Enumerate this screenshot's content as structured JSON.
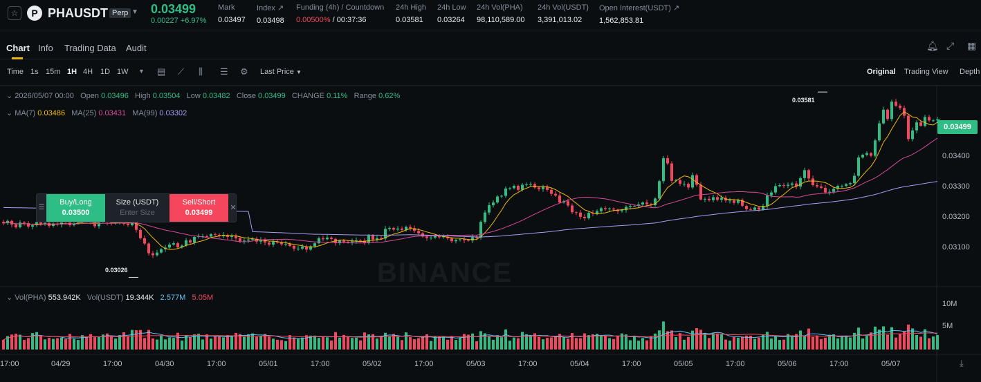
{
  "header": {
    "symbol": "PHAUSDT",
    "badge": "Perp",
    "last_price": "0.03499",
    "change": "0.00227 +6.97%",
    "stats": [
      {
        "label": "Mark",
        "value": "0.03497"
      },
      {
        "label": "Index ↗",
        "value": "0.03498"
      },
      {
        "label": "Funding (4h) / Countdown",
        "value_red": "0.00500%",
        "value": " / 00:37:36"
      },
      {
        "label": "24h High",
        "value": "0.03581"
      },
      {
        "label": "24h Low",
        "value": "0.03264"
      },
      {
        "label": "24h Vol(PHA)",
        "value": "98,110,589.00"
      },
      {
        "label": "24h Vol(USDT)",
        "value": "3,391,013.02"
      },
      {
        "label": "Open Interest(USDT) ↗",
        "value": "1,562,853.81"
      }
    ]
  },
  "tabs": [
    "Chart",
    "Info",
    "Trading Data",
    "Audit"
  ],
  "toolbar": {
    "intervals": [
      "Time",
      "1s",
      "15m",
      "1H",
      "4H",
      "1D",
      "1W"
    ],
    "active_interval": "1H",
    "price_type": "Last Price",
    "views": [
      "Original",
      "Trading View",
      "Depth"
    ],
    "active_view": "Original"
  },
  "legend": {
    "date": "2026/05/07 00:00",
    "open_label": "Open",
    "open": "0.03496",
    "high_label": "High",
    "high": "0.03504",
    "low_label": "Low",
    "low": "0.03482",
    "close_label": "Close",
    "close": "0.03499",
    "change_label": "CHANGE",
    "change": "0.11%",
    "range_label": "Range",
    "range": "0.62%",
    "ma7_label": "MA(7)",
    "ma7": "0.03486",
    "ma25_label": "MA(25)",
    "ma25": "0.03431",
    "ma99_label": "MA(99)",
    "ma99": "0.03302"
  },
  "volume_legend": {
    "vol_pha_label": "Vol(PHA)",
    "vol_pha": "553.942K",
    "vol_usdt_label": "Vol(USDT)",
    "vol_usdt": "19.344K",
    "ma1": "2.577M",
    "ma2": "5.05M"
  },
  "order_panel": {
    "buy_label": "Buy/Long",
    "buy_price": "0.03500",
    "size_label": "Size (USDT)",
    "size_placeholder": "Enter Size",
    "sell_label": "Sell/Short",
    "sell_price": "0.03499"
  },
  "price_axis": [
    "0.03400",
    "0.03300",
    "0.03200",
    "0.03100"
  ],
  "volume_axis": [
    "10M",
    "5M"
  ],
  "current_price_tag": "0.03499",
  "annotations": {
    "high": "0.03581",
    "low": "0.03026"
  },
  "watermark": "BINANCE",
  "time_axis": [
    "17:00",
    "04/29",
    "17:00",
    "04/30",
    "17:00",
    "05/01",
    "17:00",
    "05/02",
    "17:00",
    "05/03",
    "17:00",
    "05/04",
    "17:00",
    "05/05",
    "17:00",
    "05/06",
    "17:00",
    "05/07"
  ],
  "colors": {
    "up": "#2ebd85",
    "down": "#f6465d",
    "ma7": "#f0b90b",
    "ma25": "#d84a9b",
    "ma99": "#a89df5",
    "vol_ma1": "#5cc5f5",
    "vol_ma2": "#f6465d"
  },
  "chart_data": {
    "type": "candlestick",
    "interval": "1H",
    "ylim": [
      0.03,
      0.036
    ],
    "volume_ylim": [
      0,
      12000000
    ],
    "close_series": [
      0.03188,
      0.03195,
      0.03184,
      0.03176,
      0.0319,
      0.03188,
      0.03178,
      0.03182,
      0.03191,
      0.03185,
      0.03189,
      0.0318,
      0.03187,
      0.03184,
      0.03193,
      0.0319,
      0.03182,
      0.03187,
      0.03193,
      0.03199,
      0.03194,
      0.0319,
      0.03179,
      0.03195,
      0.03196,
      0.0319,
      0.03188,
      0.03189,
      0.03194,
      0.03186,
      0.03182,
      0.032,
      0.03168,
      0.03143,
      0.03127,
      0.03098,
      0.03092,
      0.031,
      0.0311,
      0.03115,
      0.03124,
      0.03128,
      0.03116,
      0.03121,
      0.03137,
      0.0313,
      0.03147,
      0.03149,
      0.03149,
      0.03148,
      0.03155,
      0.03153,
      0.03149,
      0.03153,
      0.03147,
      0.03151,
      0.03143,
      0.03134,
      0.03136,
      0.03139,
      0.03141,
      0.03133,
      0.03139,
      0.0313,
      0.03124,
      0.03132,
      0.03131,
      0.03125,
      0.03126,
      0.0312,
      0.03112,
      0.03112,
      0.03118,
      0.03109,
      0.03119,
      0.03128,
      0.03143,
      0.0314,
      0.03145,
      0.03141,
      0.03128,
      0.03136,
      0.03132,
      0.03131,
      0.03134,
      0.03137,
      0.03136,
      0.03129,
      0.03151,
      0.03139,
      0.03143,
      0.03142,
      0.03171,
      0.03174,
      0.03169,
      0.03172,
      0.03168,
      0.03177,
      0.03173,
      0.03165,
      0.03158,
      0.03148,
      0.03144,
      0.03145,
      0.0315,
      0.03146,
      0.03148,
      0.03143,
      0.03134,
      0.03138,
      0.0314,
      0.03137,
      0.03136,
      0.03146,
      0.03145,
      0.03192,
      0.0322,
      0.03242,
      0.0325,
      0.03268,
      0.0327,
      0.03292,
      0.03293,
      0.033,
      0.03288,
      0.03303,
      0.03304,
      0.03305,
      0.03295,
      0.0329,
      0.03297,
      0.03288,
      0.03276,
      0.03271,
      0.0325,
      0.03254,
      0.03241,
      0.03221,
      0.0322,
      0.03207,
      0.03203,
      0.03219,
      0.03217,
      0.03224,
      0.03233,
      0.0323,
      0.03232,
      0.03229,
      0.03224,
      0.03227,
      0.03237,
      0.0324,
      0.0324,
      0.03244,
      0.0325,
      0.03245,
      0.03242,
      0.03262,
      0.03314,
      0.03383,
      0.03367,
      0.03315,
      0.03317,
      0.03306,
      0.03306,
      0.03295,
      0.03332,
      0.03303,
      0.03259,
      0.03261,
      0.03257,
      0.03266,
      0.03258,
      0.03264,
      0.03256,
      0.03256,
      0.03249,
      0.03258,
      0.0324,
      0.0323,
      0.03228,
      0.03235,
      0.03229,
      0.0324,
      0.03271,
      0.0328,
      0.03299,
      0.03302,
      0.033,
      0.03303,
      0.03307,
      0.03298,
      0.03323,
      0.03347,
      0.03322,
      0.03302,
      0.03298,
      0.03294,
      0.0328,
      0.03282,
      0.03291,
      0.033,
      0.033,
      0.03305,
      0.03308,
      0.0333,
      0.03385,
      0.03393,
      0.03398,
      0.0339,
      0.03436,
      0.03487,
      0.03528,
      0.035,
      0.03552,
      0.0354,
      0.03533,
      0.0351,
      0.0344,
      0.03466,
      0.0349,
      0.0348,
      0.03506,
      0.03496,
      0.03496,
      0.03499
    ],
    "series": [
      {
        "name": "MA(7)",
        "last": 0.03486
      },
      {
        "name": "MA(25)",
        "last": 0.03431
      },
      {
        "name": "MA(99)",
        "last": 0.03302
      }
    ],
    "high": 0.03581,
    "low": 0.03026
  }
}
